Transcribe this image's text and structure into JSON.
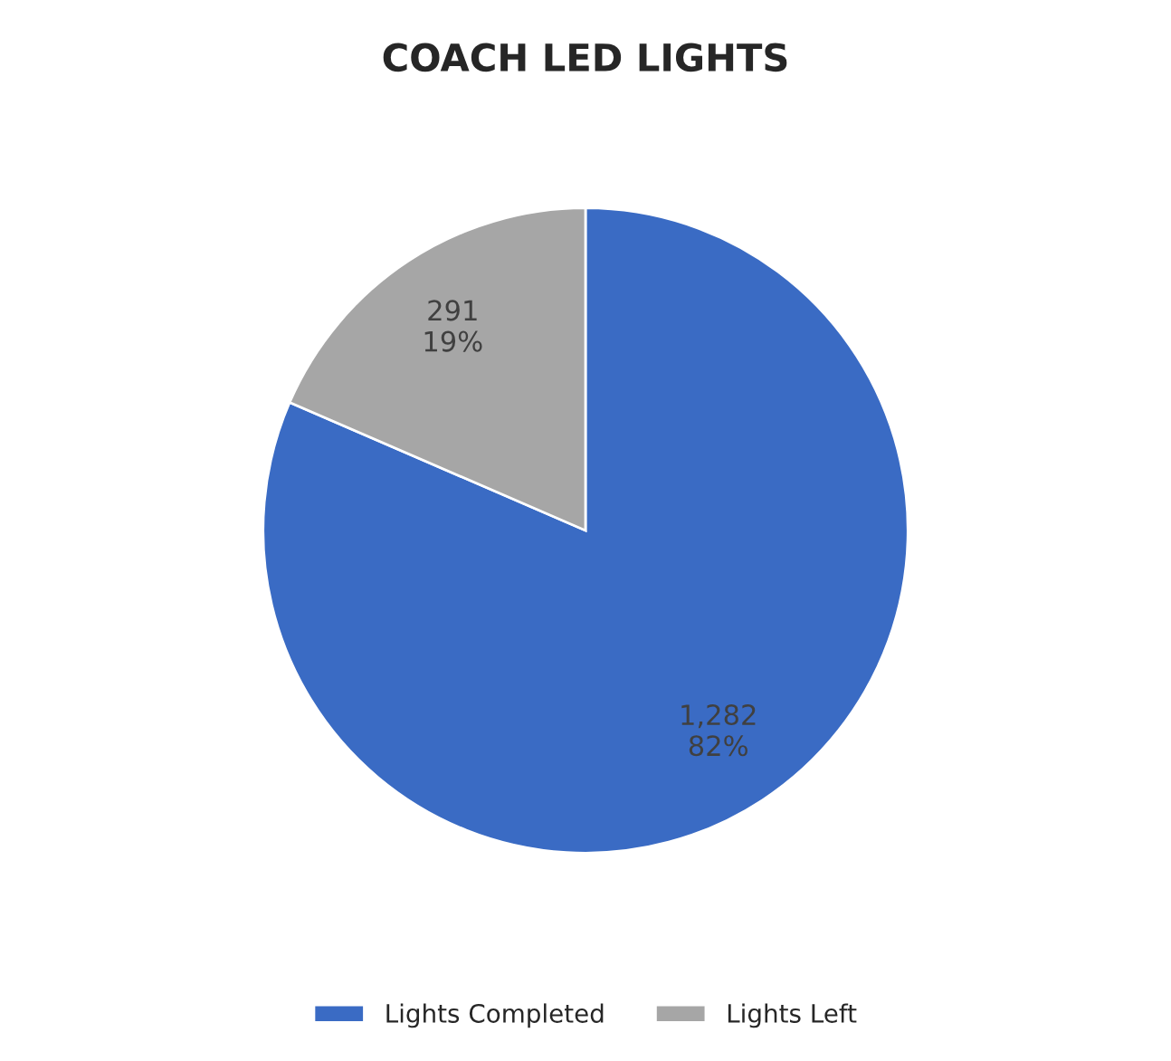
{
  "chart_data": {
    "type": "pie",
    "title": "COACH LED LIGHTS",
    "categories": [
      "Lights Completed",
      "Lights Left"
    ],
    "values": [
      1282,
      291
    ],
    "colors": [
      "#3a6bc4",
      "#a6a6a6"
    ],
    "value_labels": [
      "1,282\n82%",
      "291\n19%"
    ],
    "legend": "bottom"
  }
}
